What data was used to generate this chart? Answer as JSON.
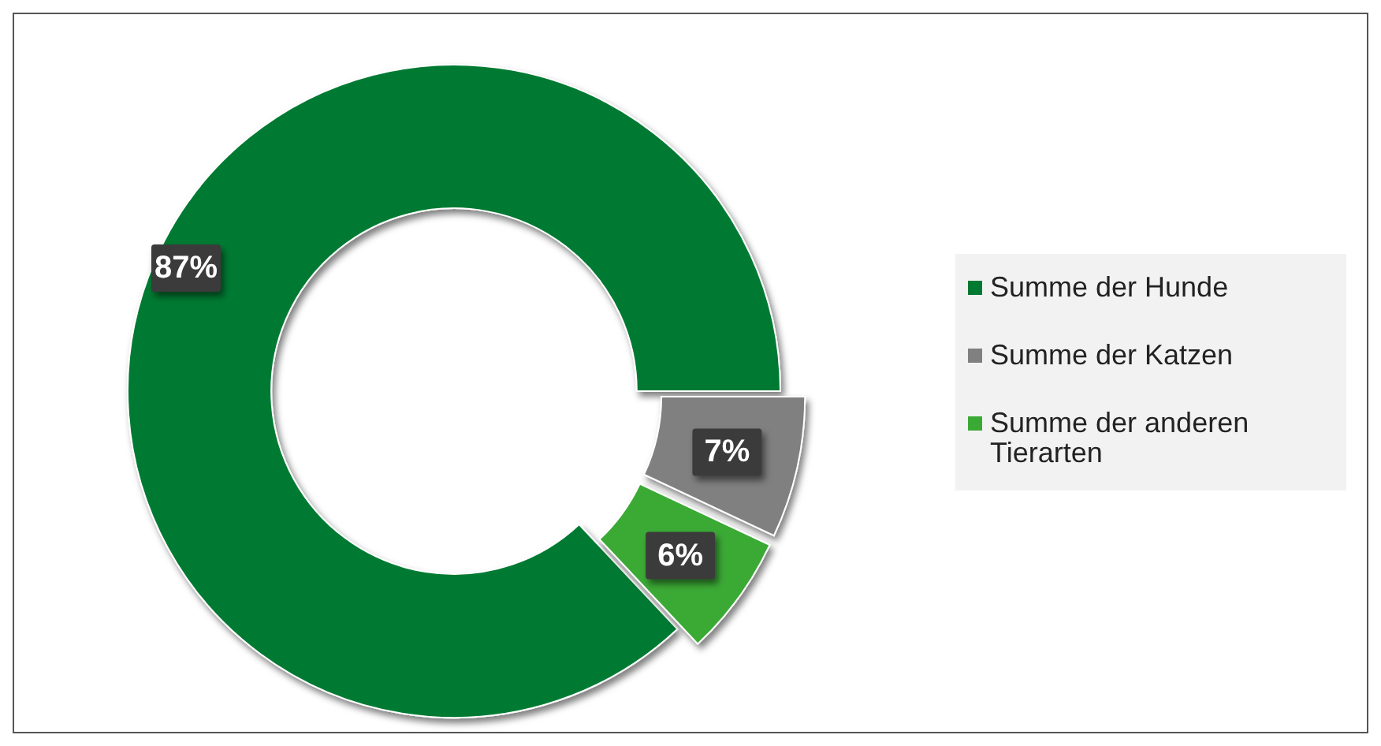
{
  "chart_data": {
    "type": "donut",
    "categories": [
      "Summe der Hunde",
      "Summe der Katzen",
      "Summe der anderen Tierarten"
    ],
    "values": [
      87,
      7,
      6
    ],
    "colors": [
      "#007a33",
      "#808080",
      "#3aaa35"
    ],
    "value_labels": [
      "87%",
      "7%",
      "6%"
    ],
    "legend": "right"
  }
}
